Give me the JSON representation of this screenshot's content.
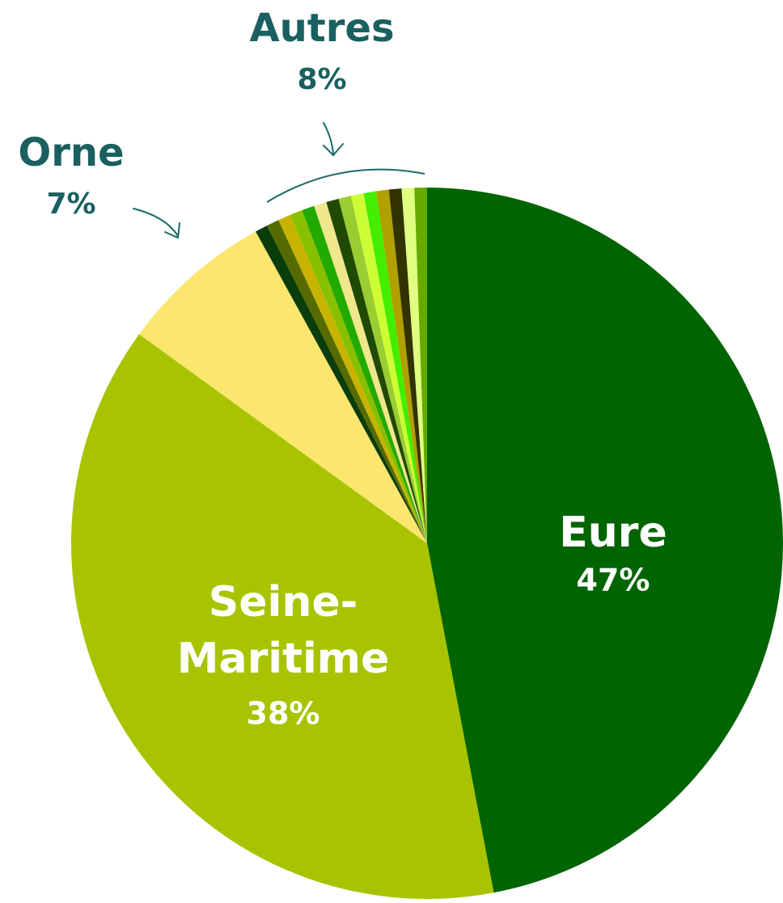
{
  "chart_data": {
    "type": "pie",
    "categories": [
      "Eure",
      "Seine-Maritime",
      "Orne",
      "Autres"
    ],
    "values": [
      47,
      38,
      7,
      8
    ],
    "value_labels": [
      "47%",
      "38%",
      "7%",
      "8%"
    ],
    "colors": [
      "#006400",
      "#a8c400",
      "#fce66e",
      [
        "#0b3d0b",
        "#556b00",
        "#c8b400",
        "#88c000",
        "#22aa00",
        "#f0e68c",
        "#1f4a00",
        "#9acd32",
        "#ccff33",
        "#44ee00",
        "#b0a000",
        "#333300",
        "#e0ff80",
        "#66aa00"
      ]
    ]
  }
}
